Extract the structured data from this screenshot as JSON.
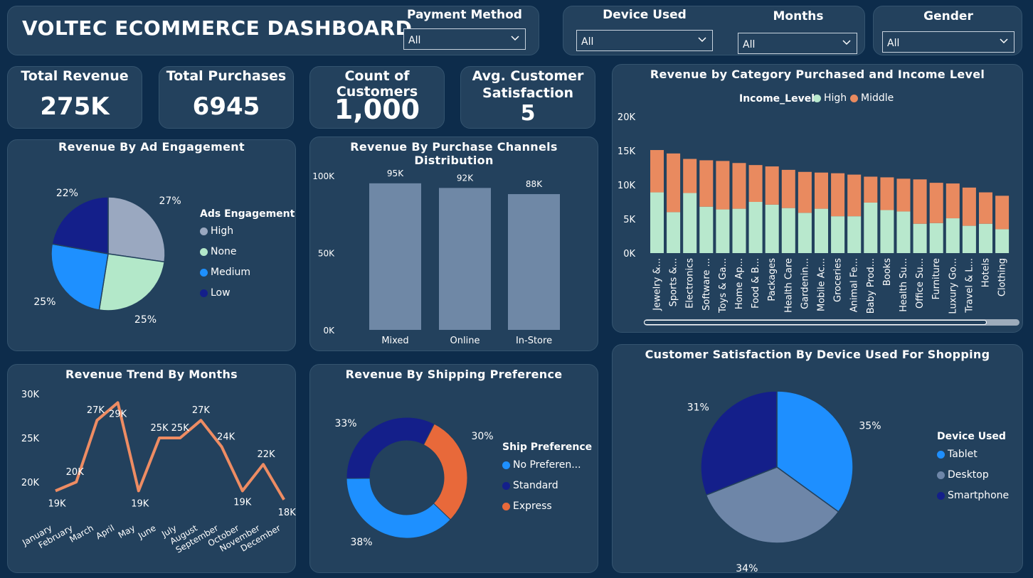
{
  "header": {
    "title": "VOLTEC ECOMMERCE DASHBOARD"
  },
  "slicers": {
    "payment": {
      "label": "Payment Method",
      "value": "All"
    },
    "device": {
      "label": "Device Used",
      "value": "All"
    },
    "months": {
      "label": "Months",
      "value": "All"
    },
    "gender": {
      "label": "Gender",
      "value": "All"
    }
  },
  "kpis": {
    "revenue": {
      "label": "Total Revenue",
      "value": "275K"
    },
    "purchases": {
      "label": "Total Purchases",
      "value": "6945"
    },
    "customers": {
      "label": "Count of Customers",
      "value": "1,000"
    },
    "satisfaction": {
      "label_line1": "Avg. Customer",
      "label_line2": "Satisfaction",
      "value": "5"
    }
  },
  "colors": {
    "background": "#0d2c4b",
    "card": "#23415d",
    "high": "#9aa8c0",
    "none": "#b3e8c9",
    "medium": "#1e90ff",
    "low": "#141f8a",
    "bar": "#6f88a6",
    "income_high": "#b8e8cd",
    "income_middle": "#e98a5f",
    "line": "#ee8c63",
    "express": "#e8693a",
    "tablet": "#1e8fff",
    "desktop": "#6e86a8",
    "smartphone": "#141f8a"
  },
  "charts": {
    "ad_engagement": {
      "title": "Revenue By Ad Engagement",
      "legend_title": "Ads Engagement",
      "chart_data": {
        "type": "pie",
        "title": "Revenue By Ad Engagement",
        "categories": [
          "High",
          "None",
          "Medium",
          "Low"
        ],
        "values": [
          27,
          25,
          25,
          22
        ],
        "labels": [
          "27%",
          "25%",
          "25%",
          "22%"
        ],
        "legend_position": "right"
      }
    },
    "channels": {
      "title": "Revenue By Purchase Channels Distribution",
      "chart_data": {
        "type": "bar",
        "title": "Revenue By Purchase Channels Distribution",
        "categories": [
          "Mixed",
          "Online",
          "In-Store"
        ],
        "values": [
          95000,
          92000,
          88000
        ],
        "data_labels": [
          "95K",
          "92K",
          "88K"
        ],
        "y_ticks": [
          "0K",
          "50K",
          "100K"
        ],
        "ylim": [
          0,
          100000
        ]
      }
    },
    "category_income": {
      "title": "Revenue by Category Purchased and Income Level",
      "legend_title": "Income_Level",
      "chart_data": {
        "type": "bar",
        "stacked": true,
        "title": "Revenue by Category Purchased and Income Level",
        "categories": [
          "Jewelry &...",
          "Sports &...",
          "Electronics",
          "Software ...",
          "Toys & Ga...",
          "Home Ap...",
          "Food & B...",
          "Packages",
          "Health Care",
          "Gardenin...",
          "Mobile Ac...",
          "Groceries",
          "Animal Fe...",
          "Baby Prod...",
          "Books",
          "Health Su...",
          "Office Su...",
          "Furniture",
          "Luxury Go...",
          "Travel & L...",
          "Hotels",
          "Clothing"
        ],
        "series": [
          {
            "name": "High",
            "values": [
              8900,
              6000,
              8800,
              6800,
              6400,
              6500,
              7500,
              7100,
              6600,
              5900,
              6500,
              5400,
              5400,
              7400,
              6300,
              6100,
              4300,
              4400,
              5100,
              4000,
              4300,
              3500
            ]
          },
          {
            "name": "Middle",
            "values": [
              6200,
              8600,
              5000,
              6800,
              7100,
              6700,
              5400,
              5600,
              5600,
              6000,
              5300,
              6300,
              6100,
              3800,
              4800,
              4800,
              6500,
              5900,
              5100,
              5600,
              4600,
              4900
            ]
          }
        ],
        "y_ticks": [
          "0K",
          "5K",
          "10K",
          "15K",
          "20K"
        ],
        "ylim": [
          0,
          20000
        ],
        "legend_position": "top"
      }
    },
    "months": {
      "title": "Revenue Trend By Months",
      "chart_data": {
        "type": "line",
        "title": "Revenue Trend By Months",
        "categories": [
          "January",
          "February",
          "March",
          "April",
          "May",
          "June",
          "July",
          "August",
          "September",
          "October",
          "November",
          "December"
        ],
        "values": [
          19000,
          20000,
          27000,
          29000,
          19000,
          25000,
          25000,
          27000,
          24000,
          19000,
          22000,
          18000
        ],
        "data_labels": [
          "19K",
          "20K",
          "27K",
          "29K",
          "19K",
          "25K",
          "25K",
          "27K",
          "24K",
          "19K",
          "22K",
          "18K"
        ],
        "y_ticks": [
          "20K",
          "25K",
          "30K"
        ],
        "ylim": [
          17000,
          30000
        ]
      }
    },
    "shipping": {
      "title": "Revenue By Shipping Preference",
      "legend_title": "Ship Preference",
      "chart_data": {
        "type": "pie",
        "donut": true,
        "title": "Revenue By Shipping Preference",
        "categories": [
          "No Preferen...",
          "Standard",
          "Express"
        ],
        "values": [
          38,
          33,
          30
        ],
        "labels": [
          "38%",
          "33%",
          "30%"
        ],
        "legend_position": "right"
      }
    },
    "device": {
      "title": "Customer Satisfaction By Device Used For Shopping",
      "legend_title": "Device  Used",
      "chart_data": {
        "type": "pie",
        "title": "Customer Satisfaction By Device Used For Shopping",
        "categories": [
          "Tablet",
          "Desktop",
          "Smartphone"
        ],
        "values": [
          35,
          34,
          31
        ],
        "labels": [
          "35%",
          "34%",
          "31%"
        ],
        "legend_position": "right"
      }
    }
  }
}
